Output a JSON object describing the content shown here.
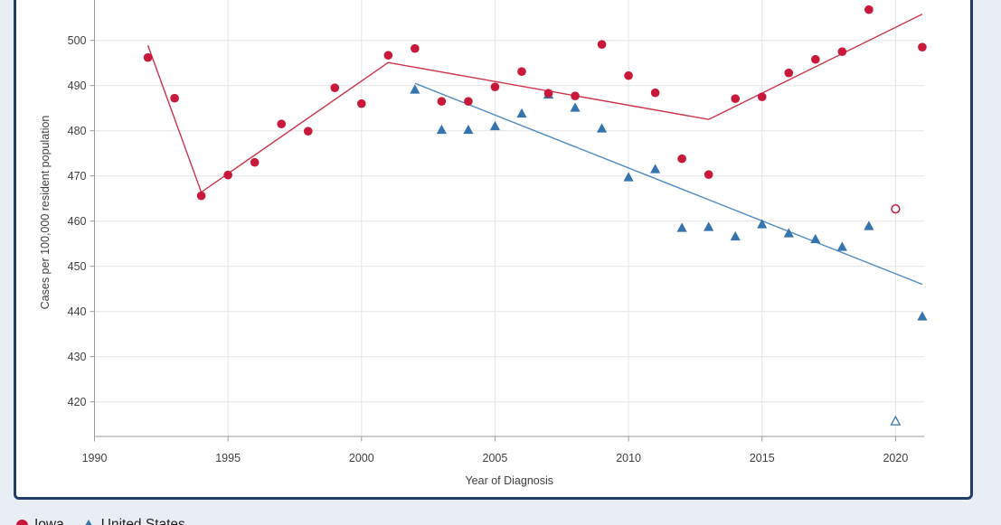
{
  "colors": {
    "page_bg": "#e9edf4",
    "plot_bg": "#ffffff",
    "panel_border": "#243c69",
    "grid": "#e4e4e4",
    "axis": "#9b9b9b",
    "tick_text": "#3f3f3f",
    "legend_text": "#1f1f1f"
  },
  "chart_data": {
    "type": "scatter",
    "title": "",
    "xlabel": "Year of Diagnosis",
    "ylabel": "Cases per 100,000 resident population",
    "x_ticks": [
      1990,
      1995,
      2000,
      2005,
      2010,
      2015,
      2020
    ],
    "y_ticks": [
      420,
      430,
      440,
      450,
      460,
      470,
      480,
      490,
      500
    ],
    "xlim": [
      1990,
      2021.3
    ],
    "ylim_visible": [
      412,
      509
    ],
    "grid": true,
    "legend_position": "bottom-left",
    "series": [
      {
        "name": "Iowa",
        "marker": "circle",
        "color": "#c8193a",
        "trend_color": "#cd324b",
        "points": [
          [
            1992,
            496.2
          ],
          [
            1993,
            487.2
          ],
          [
            1994,
            465.6
          ],
          [
            1995,
            470.2
          ],
          [
            1996,
            473.0
          ],
          [
            1997,
            481.5
          ],
          [
            1998,
            479.9
          ],
          [
            1999,
            489.5
          ],
          [
            2000,
            486.0
          ],
          [
            2001,
            496.7
          ],
          [
            2002,
            498.2
          ],
          [
            2003,
            486.5
          ],
          [
            2004,
            486.5
          ],
          [
            2005,
            489.7
          ],
          [
            2006,
            493.1
          ],
          [
            2007,
            488.3
          ],
          [
            2008,
            487.7
          ],
          [
            2009,
            499.1
          ],
          [
            2010,
            492.2
          ],
          [
            2011,
            488.4
          ],
          [
            2012,
            473.8
          ],
          [
            2013,
            470.3
          ],
          [
            2014,
            487.1
          ],
          [
            2015,
            487.5
          ],
          [
            2016,
            492.8
          ],
          [
            2017,
            495.8
          ],
          [
            2018,
            497.5
          ],
          [
            2019,
            506.8
          ],
          [
            2021,
            498.5
          ]
        ],
        "open_points": [
          [
            2020,
            462.7
          ]
        ],
        "trend": [
          [
            1992,
            498.9
          ],
          [
            1994,
            466.4
          ],
          [
            2001,
            495.1
          ],
          [
            2013,
            482.5
          ],
          [
            2021,
            505.8
          ]
        ]
      },
      {
        "name": "United States",
        "marker": "triangle",
        "color": "#3674ad",
        "trend_color": "#508cc3",
        "points": [
          [
            2002,
            489.1
          ],
          [
            2003,
            480.2
          ],
          [
            2004,
            480.2
          ],
          [
            2005,
            481.0
          ],
          [
            2006,
            483.8
          ],
          [
            2007,
            488.0
          ],
          [
            2008,
            485.1
          ],
          [
            2009,
            480.5
          ],
          [
            2010,
            469.7
          ],
          [
            2011,
            471.5
          ],
          [
            2012,
            458.5
          ],
          [
            2013,
            458.7
          ],
          [
            2014,
            456.6
          ],
          [
            2015,
            459.3
          ],
          [
            2016,
            457.3
          ],
          [
            2017,
            456.0
          ],
          [
            2018,
            454.3
          ],
          [
            2019,
            458.9
          ],
          [
            2021,
            438.9
          ]
        ],
        "open_points": [
          [
            2020,
            415.7
          ]
        ],
        "trend": [
          [
            2002,
            490.5
          ],
          [
            2021,
            446.0
          ]
        ]
      }
    ]
  },
  "legend": {
    "items": [
      {
        "label": "Iowa"
      },
      {
        "label": "United States"
      }
    ]
  }
}
